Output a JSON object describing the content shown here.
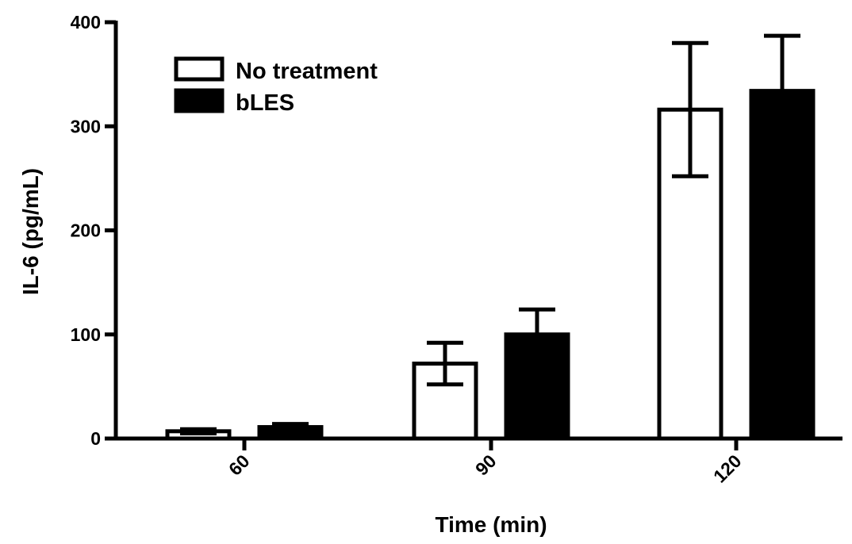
{
  "chart_data": {
    "type": "bar",
    "xlabel": "Time  (min)",
    "ylabel": "IL-6 (pg/mL)",
    "categories": [
      "60",
      "90",
      "120"
    ],
    "ylim": [
      0,
      400
    ],
    "yticks": [
      0,
      100,
      200,
      300,
      400
    ],
    "legend_position": "top-left",
    "grid": false,
    "series": [
      {
        "name": "No treatment",
        "fill": "#ffffff",
        "stroke": "#000000",
        "values": [
          7,
          72,
          316
        ],
        "error": [
          2,
          20,
          64
        ]
      },
      {
        "name": "bLES",
        "fill": "#000000",
        "stroke": "#000000",
        "values": [
          11,
          100,
          334
        ],
        "error": [
          3,
          24,
          53
        ]
      }
    ]
  }
}
